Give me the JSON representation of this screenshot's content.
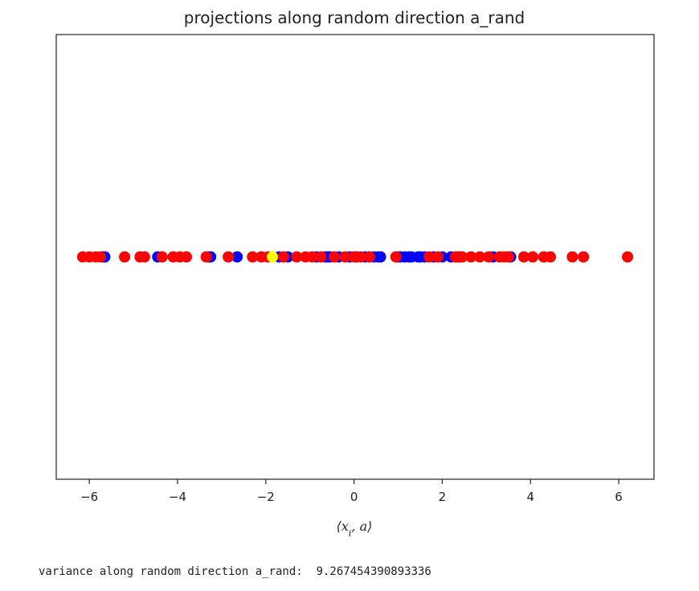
{
  "chart_data": {
    "type": "scatter",
    "title": "projections along random direction a_rand",
    "xlabel": "⟨x_i, a⟩",
    "ylabel": "",
    "xlim": [
      -6.75,
      6.8
    ],
    "ylim": [
      -1,
      1
    ],
    "xticks": [
      -6,
      -4,
      -2,
      0,
      2,
      4,
      6
    ],
    "xtick_labels": [
      "−6",
      "−4",
      "−2",
      "0",
      "2",
      "4",
      "6"
    ],
    "yticks": [],
    "grid": false,
    "legend": "none",
    "series": [
      {
        "color": "#0000ff",
        "x": [
          -5.7,
          -5.65,
          -4.45,
          -3.3,
          -3.25,
          -2.65,
          -1.7,
          -1.5,
          -0.85,
          -0.65,
          -0.6,
          -0.55,
          -0.35,
          -0.1,
          0.05,
          0.25,
          0.35,
          0.45,
          0.55,
          0.6,
          1.0,
          1.05,
          1.15,
          1.25,
          1.3,
          1.45,
          1.5,
          1.6,
          1.8,
          2.0,
          2.2,
          2.4,
          3.15,
          3.55
        ],
        "y": [
          0,
          0,
          0,
          0,
          0,
          0,
          0,
          0,
          0,
          0,
          0,
          0,
          0,
          0,
          0,
          0,
          0,
          0,
          0,
          0,
          0,
          0,
          0,
          0,
          0,
          0,
          0,
          0,
          0,
          0,
          0,
          0,
          0,
          0
        ]
      },
      {
        "color": "#ff0000",
        "x": [
          -6.15,
          -6.0,
          -5.85,
          -5.75,
          -5.2,
          -4.85,
          -4.75,
          -4.35,
          -4.1,
          -3.95,
          -3.8,
          -3.35,
          -2.85,
          -2.3,
          -2.1,
          -1.95,
          -1.6,
          -1.3,
          -1.1,
          -0.95,
          -0.75,
          -0.45,
          -0.2,
          0.0,
          0.15,
          0.35,
          0.95,
          1.7,
          1.9,
          2.3,
          2.35,
          2.45,
          2.65,
          2.85,
          3.05,
          3.3,
          3.4,
          3.5,
          3.85,
          4.05,
          4.3,
          4.45,
          4.95,
          5.2,
          6.2
        ],
        "y": [
          0,
          0,
          0,
          0,
          0,
          0,
          0,
          0,
          0,
          0,
          0,
          0,
          0,
          0,
          0,
          0,
          0,
          0,
          0,
          0,
          0,
          0,
          0,
          0,
          0,
          0,
          0,
          0,
          0,
          0,
          0,
          0,
          0,
          0,
          0,
          0,
          0,
          0,
          0,
          0,
          0,
          0,
          0,
          0,
          0
        ]
      },
      {
        "color": "#ffff00",
        "x": [
          -1.85
        ],
        "y": [
          0
        ]
      }
    ]
  },
  "output": {
    "text": "variance along random direction a_rand:  9.267454390893336"
  }
}
